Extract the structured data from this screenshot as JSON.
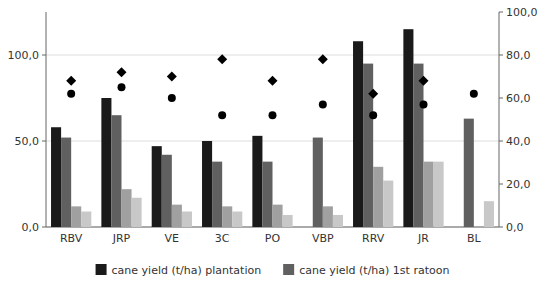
{
  "chart_data": {
    "type": "bar",
    "categories": [
      "RBV",
      "JRP",
      "VE",
      "3C",
      "PO",
      "VBP",
      "RRV",
      "JR",
      "BL"
    ],
    "series": [
      {
        "name": "cane yield (t/ha) plantation",
        "type": "bar",
        "color": "#1a1a1a",
        "values": [
          58,
          75,
          47,
          50,
          53,
          0,
          108,
          115,
          0
        ]
      },
      {
        "name": "cane yield (t/ha) 1st ratoon",
        "type": "bar",
        "color": "#606060",
        "values": [
          52,
          65,
          42,
          38,
          38,
          52,
          95,
          95,
          63
        ]
      },
      {
        "type": "bar",
        "color": "#a0a0a0",
        "values": [
          12,
          22,
          13,
          12,
          13,
          12,
          35,
          38,
          0
        ]
      },
      {
        "type": "bar",
        "color": "#c8c8c8",
        "values": [
          9,
          17,
          9,
          9,
          7,
          7,
          27,
          38,
          15
        ]
      },
      {
        "type": "scatter",
        "axis": "y2",
        "marker": "diamond",
        "color": "#000000",
        "values": [
          68,
          72,
          70,
          78,
          68,
          78,
          62,
          68,
          null
        ]
      },
      {
        "type": "scatter",
        "axis": "y2",
        "marker": "circle",
        "color": "#000000",
        "values": [
          62,
          65,
          60,
          52,
          52,
          57,
          52,
          57,
          62
        ]
      }
    ],
    "ylim": [
      0,
      125
    ],
    "yticks": [
      {
        "value": 0,
        "label": "0,0"
      },
      {
        "value": 50,
        "label": "50,0"
      },
      {
        "value": 100,
        "label": "100,0"
      }
    ],
    "y2lim": [
      0,
      100
    ],
    "y2ticks": [
      {
        "value": 0,
        "label": "0,0"
      },
      {
        "value": 20,
        "label": "20,0"
      },
      {
        "value": 40,
        "label": "40,0"
      },
      {
        "value": 60,
        "label": "60,0"
      },
      {
        "value": 80,
        "label": "80,0"
      },
      {
        "value": 100,
        "label": "100,0"
      }
    ],
    "grid": true,
    "legend": "bottom"
  }
}
